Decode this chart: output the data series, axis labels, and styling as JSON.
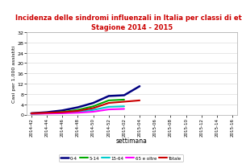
{
  "title_line1": "Incidenza delle sindromi influenzali in Italia per classi di età.",
  "title_line2": "Stagione 2014 - 2015",
  "title_color": "#cc0000",
  "xlabel": "settimana",
  "ylabel": "Casi per 1.000 assistiti",
  "ylim": [
    0,
    32
  ],
  "yticks": [
    0,
    4,
    8,
    12,
    16,
    20,
    24,
    28,
    32
  ],
  "weeks": [
    "2014-42",
    "2014-44",
    "2014-46",
    "2014-48",
    "2014-50",
    "2014-52",
    "2015-02",
    "2015-04",
    "2015-06",
    "2015-08",
    "2015-10",
    "2015-12",
    "2015-14",
    "2015-16"
  ],
  "series": {
    "0-4": [
      0.5,
      0.9,
      1.6,
      2.8,
      4.5,
      7.2,
      7.5,
      11.0,
      null,
      null,
      null,
      null,
      null,
      null
    ],
    "5-14": [
      0.3,
      0.5,
      1.0,
      1.8,
      3.2,
      5.5,
      5.8,
      null,
      null,
      null,
      null,
      null,
      null,
      null
    ],
    "15-64": [
      0.4,
      0.5,
      0.7,
      1.0,
      1.8,
      3.0,
      3.2,
      null,
      null,
      null,
      null,
      null,
      null,
      null
    ],
    "65 e oltre": [
      0.3,
      0.4,
      0.5,
      0.7,
      1.1,
      2.0,
      2.2,
      null,
      null,
      null,
      null,
      null,
      null,
      null
    ],
    "Totale": [
      0.5,
      0.7,
      0.9,
      1.4,
      2.5,
      4.5,
      5.0,
      5.5,
      null,
      null,
      null,
      null,
      null,
      null
    ]
  },
  "colors": {
    "0-4": "#000080",
    "5-14": "#00aa00",
    "15-64": "#00cccc",
    "65 e oltre": "#ff00ff",
    "Totale": "#cc0000"
  },
  "linewidths": {
    "0-4": 1.8,
    "5-14": 1.5,
    "15-64": 1.5,
    "65 e oltre": 1.5,
    "Totale": 1.5
  },
  "background": "#ffffff",
  "plot_background": "#ffffff",
  "grid_color": "#dddddd"
}
